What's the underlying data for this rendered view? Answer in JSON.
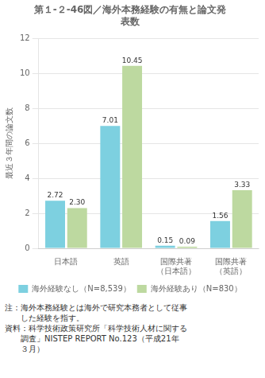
{
  "chart_data": {
    "type": "bar",
    "title": [
      "第１-２-46図／海外本務経験の有無と論文発",
      "表数"
    ],
    "ylabel": "最近３年間の論文数",
    "categories": [
      "日本語",
      "英語",
      "国際共著\n（日本語）",
      "国際共著\n（英語）"
    ],
    "series": [
      {
        "name": "海外経験なし（N=8,539）",
        "color": "#7dd0e0",
        "values": [
          2.72,
          7.01,
          0.15,
          1.56
        ],
        "value_labels": [
          "2.72",
          "7.01",
          "0.15",
          "1.56"
        ]
      },
      {
        "name": "海外経験あり（N=830）",
        "color": "#bdd9a0",
        "values": [
          2.3,
          10.45,
          0.09,
          3.33
        ],
        "value_labels": [
          "2.30",
          "10.45",
          "0.09",
          "3.33"
        ]
      }
    ],
    "ylim": [
      0,
      12
    ],
    "yticks": [
      0,
      2,
      4,
      6,
      8,
      10,
      12
    ],
    "grid": true,
    "legend": "bottom",
    "data_labels": true,
    "annotations": [
      "注：海外本務経験とは海外で研究本務者として従事",
      "　　した経験を指す。",
      "資料：科学技術政策研究所「科学技術人材に関する",
      "　　調査」NISTEP REPORT No.123（平成21年",
      "　　３月）"
    ]
  }
}
